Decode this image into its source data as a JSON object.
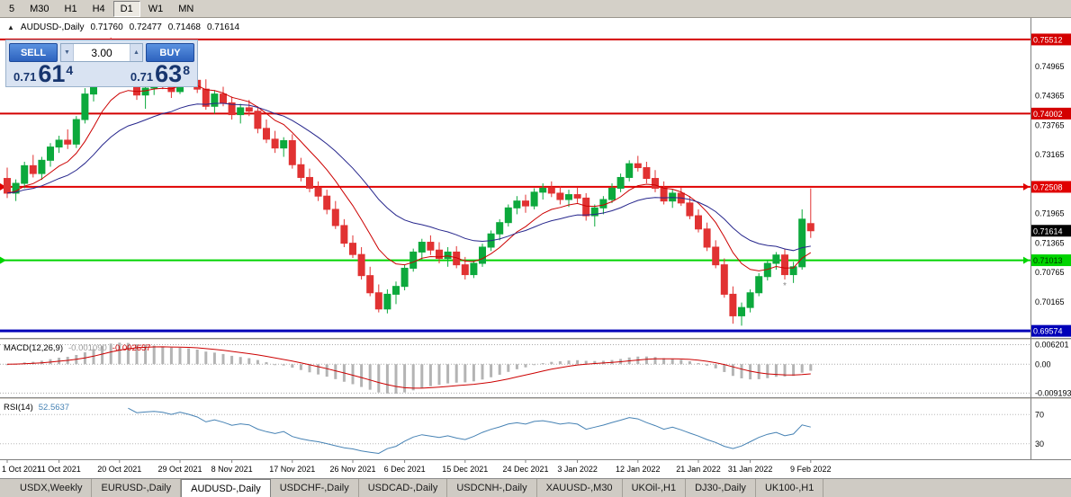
{
  "toolbar": {
    "timeframes": [
      "5",
      "M30",
      "H1",
      "H4",
      "D1",
      "W1",
      "MN"
    ],
    "active": "D1"
  },
  "chart_header": {
    "collapse_icon": "▲",
    "symbol": "AUDUSD-,Daily",
    "open": "0.71760",
    "high": "0.72477",
    "low": "0.71468",
    "close": "0.71614"
  },
  "one_click": {
    "sell_label": "SELL",
    "buy_label": "BUY",
    "volume": "3.00",
    "spin_up_icon": "▲",
    "spin_down_icon": "▼",
    "sell_price": {
      "small": "0.71",
      "big": "61",
      "sup": "4"
    },
    "buy_price": {
      "small": "0.71",
      "big": "63",
      "sup": "8"
    }
  },
  "tabs": {
    "items": [
      "USDX,Weekly",
      "EURUSD-,Daily",
      "AUDUSD-,Daily",
      "USDCHF-,Daily",
      "USDCAD-,Daily",
      "USDCNH-,Daily",
      "XAUUSD-,M30",
      "UKOil-,H1",
      "DJ30-,Daily",
      "UK100-,H1"
    ],
    "active": "AUDUSD-,Daily"
  },
  "colors": {
    "bull": "#0ca93c",
    "bear": "#e13232",
    "background": "#ffffff",
    "app_chrome": "#d4d0c8",
    "panel_blue": "#2d62be",
    "price_navy": "#17356e"
  },
  "chart_data": {
    "type": "candlestick",
    "symbol": "AUDUSD-",
    "timeframe": "Daily",
    "ohlc_display": {
      "open": "0.71760",
      "high": "0.72477",
      "low": "0.71468",
      "close": "0.71614"
    },
    "price_axis": {
      "range": [
        0.6943,
        0.7595
      ],
      "ticks": [
        {
          "text": "0.74965",
          "value": 0.74965
        },
        {
          "text": "0.74365",
          "value": 0.74365
        },
        {
          "text": "0.73765",
          "value": 0.73765
        },
        {
          "text": "0.73165",
          "value": 0.73165
        },
        {
          "text": "0.71965",
          "value": 0.71965
        },
        {
          "text": "0.71365",
          "value": 0.71365
        },
        {
          "text": "0.70765",
          "value": 0.70765
        },
        {
          "text": "0.70165",
          "value": 0.70165
        }
      ]
    },
    "hlines": [
      {
        "value": 0.75512,
        "label": "0.75512",
        "color": "#d40000",
        "text_color": "#ffffff",
        "width": 2,
        "edge_arrows": false
      },
      {
        "value": 0.74002,
        "label": "0.74002",
        "color": "#d40000",
        "text_color": "#ffffff",
        "width": 2,
        "edge_arrows": false
      },
      {
        "value": 0.72508,
        "label": "0.72508",
        "color": "#e00000",
        "text_color": "#ffffff",
        "width": 2,
        "edge_arrows": true
      },
      {
        "value": 0.71013,
        "label": "0.71013",
        "color": "#00d400",
        "text_color": "#003300",
        "width": 2,
        "edge_arrows": true
      },
      {
        "value": 0.69574,
        "label": "0.69574",
        "color": "#0000b8",
        "text_color": "#ffffff",
        "width": 3,
        "edge_arrows": false
      }
    ],
    "current_price": {
      "value": 0.71614,
      "label": "0.71614",
      "box_color": "#000000",
      "text_color": "#ffffff"
    },
    "moving_averages": [
      {
        "period": 9,
        "color": "#cc0000"
      },
      {
        "period": 21,
        "color": "#26268c"
      }
    ],
    "candles": [
      [
        0.7268,
        0.729,
        0.7228,
        0.7238
      ],
      [
        0.7238,
        0.7266,
        0.7222,
        0.7258
      ],
      [
        0.7258,
        0.7302,
        0.7248,
        0.7294
      ],
      [
        0.7294,
        0.7316,
        0.727,
        0.7278
      ],
      [
        0.7278,
        0.7312,
        0.7265,
        0.7305
      ],
      [
        0.7305,
        0.734,
        0.7292,
        0.7332
      ],
      [
        0.7332,
        0.7355,
        0.732,
        0.7346
      ],
      [
        0.7346,
        0.7368,
        0.7328,
        0.7338
      ],
      [
        0.7338,
        0.7395,
        0.733,
        0.7388
      ],
      [
        0.7388,
        0.7452,
        0.738,
        0.744
      ],
      [
        0.744,
        0.75,
        0.7425,
        0.749
      ],
      [
        0.749,
        0.7548,
        0.7478,
        0.7532
      ],
      [
        0.7532,
        0.7555,
        0.7505,
        0.7518
      ],
      [
        0.7518,
        0.7545,
        0.749,
        0.7498
      ],
      [
        0.7498,
        0.752,
        0.7462,
        0.747
      ],
      [
        0.747,
        0.7488,
        0.7428,
        0.7438
      ],
      [
        0.7438,
        0.7462,
        0.741,
        0.7452
      ],
      [
        0.7452,
        0.7478,
        0.7438,
        0.7465
      ],
      [
        0.7465,
        0.7495,
        0.745,
        0.7458
      ],
      [
        0.7458,
        0.7475,
        0.7432,
        0.7445
      ],
      [
        0.7445,
        0.749,
        0.744,
        0.7482
      ],
      [
        0.7482,
        0.7498,
        0.7455,
        0.7468
      ],
      [
        0.7468,
        0.7495,
        0.7442,
        0.745
      ],
      [
        0.745,
        0.747,
        0.7408,
        0.7415
      ],
      [
        0.7415,
        0.7448,
        0.74,
        0.744
      ],
      [
        0.744,
        0.7455,
        0.7415,
        0.7422
      ],
      [
        0.7422,
        0.7435,
        0.7388,
        0.7398
      ],
      [
        0.7398,
        0.742,
        0.738,
        0.7412
      ],
      [
        0.7412,
        0.7428,
        0.7395,
        0.7405
      ],
      [
        0.7405,
        0.7415,
        0.736,
        0.737
      ],
      [
        0.737,
        0.7388,
        0.734,
        0.7348
      ],
      [
        0.7348,
        0.7365,
        0.732,
        0.733
      ],
      [
        0.733,
        0.7352,
        0.7312,
        0.7345
      ],
      [
        0.7345,
        0.7358,
        0.7288,
        0.7296
      ],
      [
        0.7296,
        0.731,
        0.7262,
        0.727
      ],
      [
        0.727,
        0.7288,
        0.724,
        0.7248
      ],
      [
        0.7248,
        0.7262,
        0.7222,
        0.7232
      ],
      [
        0.7232,
        0.7245,
        0.7195,
        0.7205
      ],
      [
        0.7205,
        0.7222,
        0.7165,
        0.7172
      ],
      [
        0.7172,
        0.7185,
        0.7128,
        0.7136
      ],
      [
        0.7136,
        0.7152,
        0.7106,
        0.7113
      ],
      [
        0.7113,
        0.7128,
        0.7062,
        0.707
      ],
      [
        0.707,
        0.7088,
        0.7028,
        0.7035
      ],
      [
        0.7035,
        0.7052,
        0.6995,
        0.7002
      ],
      [
        0.7002,
        0.7042,
        0.6993,
        0.7032
      ],
      [
        0.7032,
        0.7058,
        0.7012,
        0.7048
      ],
      [
        0.7048,
        0.7092,
        0.704,
        0.7085
      ],
      [
        0.7085,
        0.7125,
        0.7078,
        0.7118
      ],
      [
        0.7118,
        0.7145,
        0.7102,
        0.7138
      ],
      [
        0.7138,
        0.7152,
        0.7112,
        0.7122
      ],
      [
        0.7122,
        0.7138,
        0.7095,
        0.7105
      ],
      [
        0.7105,
        0.7128,
        0.7088,
        0.7118
      ],
      [
        0.7118,
        0.713,
        0.7085,
        0.7092
      ],
      [
        0.7092,
        0.7108,
        0.7062,
        0.7072
      ],
      [
        0.7072,
        0.7102,
        0.7065,
        0.7095
      ],
      [
        0.7095,
        0.7135,
        0.7088,
        0.7128
      ],
      [
        0.7128,
        0.7162,
        0.712,
        0.7155
      ],
      [
        0.7155,
        0.7185,
        0.7142,
        0.7178
      ],
      [
        0.7178,
        0.7215,
        0.717,
        0.7208
      ],
      [
        0.7208,
        0.7232,
        0.7195,
        0.7222
      ],
      [
        0.7222,
        0.7235,
        0.7198,
        0.7212
      ],
      [
        0.7212,
        0.7248,
        0.7205,
        0.724
      ],
      [
        0.724,
        0.7258,
        0.7225,
        0.7248
      ],
      [
        0.7248,
        0.7262,
        0.723,
        0.7238
      ],
      [
        0.7238,
        0.7252,
        0.7215,
        0.7225
      ],
      [
        0.7225,
        0.7245,
        0.721,
        0.7235
      ],
      [
        0.7235,
        0.725,
        0.7218,
        0.7228
      ],
      [
        0.7228,
        0.7238,
        0.7182,
        0.7192
      ],
      [
        0.7192,
        0.7215,
        0.717,
        0.7208
      ],
      [
        0.7208,
        0.7232,
        0.7195,
        0.7225
      ],
      [
        0.7225,
        0.7258,
        0.7218,
        0.7248
      ],
      [
        0.7248,
        0.7278,
        0.724,
        0.727
      ],
      [
        0.727,
        0.7305,
        0.7262,
        0.7298
      ],
      [
        0.7298,
        0.7314,
        0.7282,
        0.729
      ],
      [
        0.729,
        0.7302,
        0.7258,
        0.7268
      ],
      [
        0.7268,
        0.7285,
        0.724,
        0.7248
      ],
      [
        0.7248,
        0.7262,
        0.7215,
        0.7222
      ],
      [
        0.7222,
        0.7245,
        0.7208,
        0.7238
      ],
      [
        0.7238,
        0.725,
        0.7212,
        0.7218
      ],
      [
        0.7218,
        0.7232,
        0.7185,
        0.7192
      ],
      [
        0.7192,
        0.7205,
        0.7158,
        0.7165
      ],
      [
        0.7165,
        0.7178,
        0.712,
        0.7128
      ],
      [
        0.7128,
        0.7142,
        0.7085,
        0.7092
      ],
      [
        0.7092,
        0.7105,
        0.7025,
        0.7032
      ],
      [
        0.7032,
        0.7048,
        0.6972,
        0.6988
      ],
      [
        0.6988,
        0.7015,
        0.6968,
        0.7005
      ],
      [
        0.7005,
        0.7042,
        0.6995,
        0.7035
      ],
      [
        0.7035,
        0.7075,
        0.7028,
        0.7068
      ],
      [
        0.7068,
        0.7102,
        0.706,
        0.7095
      ],
      [
        0.7095,
        0.7118,
        0.7082,
        0.7112
      ],
      [
        0.7112,
        0.7125,
        0.7062,
        0.7072
      ],
      [
        0.7072,
        0.7098,
        0.7055,
        0.7088
      ],
      [
        0.7088,
        0.7205,
        0.7082,
        0.7185
      ],
      [
        0.7176,
        0.72477,
        0.71468,
        0.71614
      ]
    ],
    "date_labels": [
      {
        "index": 0,
        "label": "1 Oct 2021"
      },
      {
        "index": 6,
        "label": "11 Oct 2021"
      },
      {
        "index": 13,
        "label": "20 Oct 2021"
      },
      {
        "index": 20,
        "label": "29 Oct 2021"
      },
      {
        "index": 26,
        "label": "8 Nov 2021"
      },
      {
        "index": 33,
        "label": "17 Nov 2021"
      },
      {
        "index": 40,
        "label": "26 Nov 2021"
      },
      {
        "index": 46,
        "label": "6 Dec 2021"
      },
      {
        "index": 53,
        "label": "15 Dec 2021"
      },
      {
        "index": 60,
        "label": "24 Dec 2021"
      },
      {
        "index": 66,
        "label": "3 Jan 2022"
      },
      {
        "index": 73,
        "label": "12 Jan 2022"
      },
      {
        "index": 80,
        "label": "21 Jan 2022"
      },
      {
        "index": 86,
        "label": "31 Jan 2022"
      },
      {
        "index": 93,
        "label": "9 Feb 2022"
      }
    ],
    "marker": {
      "index": 90,
      "text": "*",
      "color": "#888888"
    },
    "macd": {
      "name": "MACD(12,26,9)",
      "value_main": "-0.001090",
      "value_signal": "-0.002657",
      "fast": 12,
      "slow": 26,
      "signal_period": 9,
      "range": [
        -0.0105,
        0.0075
      ],
      "axis_ticks": [
        {
          "text": "0.006201",
          "value": 0.006201
        },
        {
          "text": "0.00",
          "value": 0
        },
        {
          "text": "-0.009193",
          "value": -0.009193
        }
      ],
      "bar_color": "#b4b4b4",
      "signal_color": "#cc0000",
      "main_value_color": "#9a9a9a"
    },
    "rsi": {
      "name": "RSI(14)",
      "value": "52.5637",
      "period": 14,
      "range": [
        10,
        90
      ],
      "levels": [
        {
          "text": "70",
          "value": 70
        },
        {
          "text": "30",
          "value": 30
        }
      ],
      "color": "#4682b4"
    }
  }
}
